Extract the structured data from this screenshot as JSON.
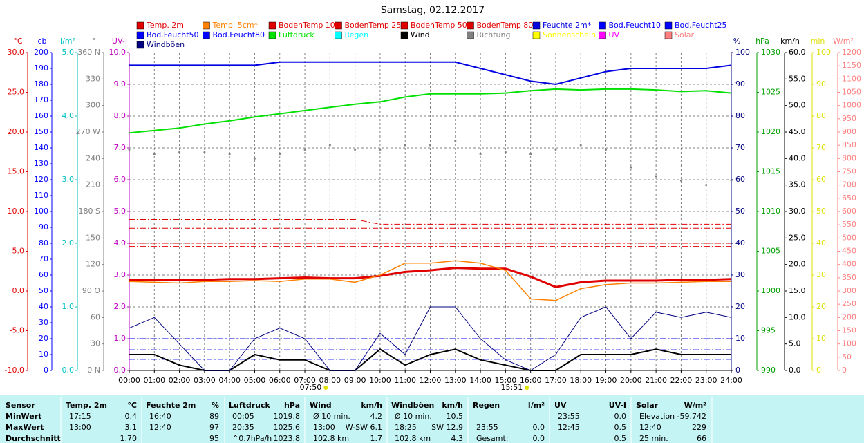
{
  "chart_data": {
    "type": "line",
    "title": "Samstag, 02.12.2017",
    "categories": [
      "00:00",
      "01:00",
      "02:00",
      "03:00",
      "04:00",
      "05:00",
      "06:00",
      "07:00",
      "08:00",
      "09:00",
      "10:00",
      "11:00",
      "12:00",
      "13:00",
      "14:00",
      "15:00",
      "16:00",
      "17:00",
      "18:00",
      "19:00",
      "20:00",
      "21:00",
      "22:00",
      "23:00",
      "24:00"
    ],
    "grid": true,
    "annotations": [
      "07:50",
      "15:51"
    ],
    "axes": [
      {
        "id": "temp",
        "side": "left",
        "label": "°C",
        "color": "#e00000",
        "lim": [
          -10,
          30
        ],
        "ticks": [
          {
            "value": -10,
            "label": "-10.0"
          },
          {
            "value": -5,
            "label": "-5.0"
          },
          {
            "value": 0,
            "label": "0.0"
          },
          {
            "value": 5,
            "label": "5.0"
          },
          {
            "value": 10,
            "label": "10.0"
          },
          {
            "value": 15,
            "label": "15.0"
          },
          {
            "value": 20,
            "label": "20.0"
          },
          {
            "value": 25,
            "label": "25.0"
          },
          {
            "value": 30,
            "label": "30.0"
          }
        ]
      },
      {
        "id": "cb",
        "side": "left",
        "label": "cb",
        "color": "#0000ff",
        "lim": [
          0,
          200
        ],
        "ticks": [
          0,
          10,
          20,
          30,
          40,
          50,
          60,
          70,
          80,
          90,
          100,
          110,
          120,
          130,
          140,
          150,
          160,
          170,
          180,
          190,
          200
        ]
      },
      {
        "id": "rain",
        "side": "left",
        "label": "l/m²",
        "color": "#00c0c0",
        "lim": [
          0,
          5
        ],
        "ticks": [
          {
            "value": 0,
            "label": "0.0"
          },
          {
            "value": 1,
            "label": "1.0"
          },
          {
            "value": 2,
            "label": "2.0"
          },
          {
            "value": 3,
            "label": "3.0"
          },
          {
            "value": 4,
            "label": "4.0"
          },
          {
            "value": 5,
            "label": "5.0"
          }
        ]
      },
      {
        "id": "dir",
        "side": "left",
        "label": "°",
        "color": "#808080",
        "lim": [
          0,
          360
        ],
        "ticks": [
          {
            "value": 0,
            "label": "0 N"
          },
          30,
          60,
          {
            "value": 90,
            "label": "90 O"
          },
          120,
          150,
          {
            "value": 180,
            "label": "180 S"
          },
          210,
          240,
          {
            "value": 270,
            "label": "270 W"
          },
          300,
          330,
          {
            "value": 360,
            "label": "360 N"
          }
        ]
      },
      {
        "id": "uv",
        "side": "left",
        "label": "UV-I",
        "color": "#c000c0",
        "lim": [
          0,
          10
        ],
        "ticks": [
          {
            "value": 0,
            "label": "0.0"
          },
          {
            "value": 1,
            "label": "1.0"
          },
          {
            "value": 2,
            "label": "2.0"
          },
          {
            "value": 3,
            "label": "3.0"
          },
          {
            "value": 4,
            "label": "4.0"
          },
          {
            "value": 5,
            "label": "5.0"
          },
          {
            "value": 6,
            "label": "6.0"
          },
          {
            "value": 7,
            "label": "7.0"
          },
          {
            "value": 8,
            "label": "8.0"
          },
          {
            "value": 9,
            "label": "9.0"
          },
          {
            "value": 10,
            "label": "10.0"
          }
        ]
      },
      {
        "id": "hum",
        "side": "right",
        "label": "%",
        "color": "#000080",
        "lim": [
          0,
          100
        ],
        "ticks": [
          0,
          10,
          20,
          30,
          40,
          50,
          60,
          70,
          80,
          90,
          100
        ]
      },
      {
        "id": "press",
        "side": "right",
        "label": "hPa",
        "color": "#00a000",
        "lim": [
          990,
          1030
        ],
        "ticks": [
          990,
          995,
          1000,
          1005,
          1010,
          1015,
          1020,
          1025,
          1030
        ]
      },
      {
        "id": "wind",
        "side": "right",
        "label": "km/h",
        "color": "#000000",
        "lim": [
          0,
          60
        ],
        "ticks": [
          {
            "value": 0,
            "label": "0.0"
          },
          {
            "value": 5,
            "label": "5.0"
          },
          {
            "value": 10,
            "label": "10.0"
          },
          {
            "value": 15,
            "label": "15.0"
          },
          {
            "value": 20,
            "label": "20.0"
          },
          {
            "value": 25,
            "label": "25.0"
          },
          {
            "value": 30,
            "label": "30.0"
          },
          {
            "value": 35,
            "label": "35.0"
          },
          {
            "value": 40,
            "label": "40.0"
          },
          {
            "value": 45,
            "label": "45.0"
          },
          {
            "value": 50,
            "label": "50.0"
          },
          {
            "value": 55,
            "label": "55.0"
          },
          {
            "value": 60,
            "label": "60.0"
          }
        ]
      },
      {
        "id": "min",
        "side": "right",
        "label": "min",
        "color": "#e0e000",
        "lim": [
          0,
          100
        ],
        "ticks": [
          0,
          10,
          20,
          30,
          40,
          50,
          60,
          70,
          80,
          90,
          100
        ]
      },
      {
        "id": "solar",
        "side": "right",
        "label": "W/m²",
        "color": "#ff8080",
        "lim": [
          0,
          1200
        ],
        "ticks": [
          0,
          50,
          100,
          150,
          200,
          250,
          300,
          350,
          400,
          450,
          500,
          550,
          600,
          650,
          700,
          750,
          800,
          850,
          900,
          950,
          1000,
          1050,
          1100,
          1150,
          1200
        ]
      }
    ],
    "series": [
      {
        "name": "Temp. 2m",
        "color": "#e00000",
        "axis": "temp",
        "width": 3,
        "values": [
          1.4,
          1.4,
          1.4,
          1.4,
          1.5,
          1.5,
          1.6,
          1.7,
          1.6,
          1.6,
          1.9,
          2.4,
          2.6,
          2.9,
          2.8,
          2.8,
          1.8,
          0.5,
          1.1,
          1.3,
          1.3,
          1.3,
          1.4,
          1.4,
          1.5
        ]
      },
      {
        "name": "Temp. 5cm*",
        "color": "#ff8000",
        "axis": "temp",
        "width": 1.5,
        "values": [
          1.2,
          1.1,
          1.0,
          1.2,
          1.2,
          1.3,
          1.2,
          1.5,
          1.5,
          1.1,
          2.0,
          3.5,
          3.5,
          3.8,
          3.5,
          2.6,
          -1.0,
          -1.2,
          0.3,
          0.8,
          1.0,
          1.0,
          1.1,
          1.2,
          1.2
        ]
      },
      {
        "name": "BodenTemp 10",
        "color": "#e00000",
        "axis": "temp",
        "dash": true,
        "values": [
          9.0,
          9.0,
          9.0,
          9.0,
          9.0,
          9.0,
          9.0,
          9.0,
          9.0,
          9.0,
          8.4,
          8.4,
          8.4,
          8.4,
          8.4,
          8.4,
          8.4,
          8.4,
          8.4,
          8.4,
          8.4,
          8.4,
          8.4,
          8.4,
          8.4
        ]
      },
      {
        "name": "BodenTemp 25",
        "color": "#e00000",
        "axis": "temp",
        "dash": true,
        "values": [
          7.9,
          7.9,
          7.9,
          7.9,
          7.9,
          7.9,
          7.9,
          7.9,
          7.9,
          7.9,
          7.9,
          7.9,
          7.9,
          7.9,
          7.9,
          7.9,
          7.9,
          7.9,
          7.9,
          7.9,
          7.9,
          7.9,
          7.9,
          7.9,
          7.9
        ]
      },
      {
        "name": "BodenTemp 50",
        "color": "#e00000",
        "axis": "temp",
        "dash": true,
        "values": [
          6.0,
          6.0,
          6.0,
          6.0,
          6.0,
          6.0,
          6.0,
          6.0,
          6.0,
          6.0,
          6.0,
          6.0,
          6.0,
          6.0,
          6.0,
          6.0,
          6.0,
          6.0,
          6.0,
          6.0,
          6.0,
          6.0,
          6.0,
          6.0,
          6.0
        ]
      },
      {
        "name": "BodenTemp 80",
        "color": "#e00000",
        "axis": "temp",
        "dash": true,
        "values": [
          5.6,
          5.6,
          5.6,
          5.6,
          5.6,
          5.6,
          5.6,
          5.6,
          5.6,
          5.6,
          5.6,
          5.6,
          5.6,
          5.6,
          5.6,
          5.6,
          5.6,
          5.6,
          5.6,
          5.6,
          5.6,
          5.6,
          5.6,
          5.6,
          5.6
        ]
      },
      {
        "name": "Feuchte 2m*",
        "color": "#0000e0",
        "axis": "hum",
        "width": 2,
        "values": [
          96,
          96,
          96,
          96,
          96,
          96,
          97,
          97,
          97,
          97,
          97,
          97,
          97,
          97,
          95,
          93,
          91,
          90,
          92,
          94,
          95,
          95,
          95,
          95,
          96
        ]
      },
      {
        "name": "Bod.Feucht10",
        "color": "#0000ff",
        "axis": "hum",
        "dash": true,
        "values": [
          10,
          10,
          10,
          10,
          10,
          10,
          10,
          10,
          10,
          10,
          10,
          10,
          10,
          10,
          10,
          10,
          10,
          10,
          10,
          10,
          10,
          10,
          10,
          10,
          10
        ]
      },
      {
        "name": "Bod.Feucht25",
        "color": "#0000ff",
        "axis": "hum",
        "dash": true,
        "values": [
          6.5,
          6.5,
          6.5,
          6.5,
          6.5,
          6.5,
          6.5,
          6.5,
          6.5,
          6.5,
          6.5,
          6.5,
          6.5,
          6.5,
          6.5,
          6.5,
          6.5,
          6.5,
          6.5,
          6.5,
          6.5,
          6.5,
          6.5,
          6.5,
          6.5
        ]
      },
      {
        "name": "Bod.Feucht50",
        "color": "#0000ff",
        "axis": "hum",
        "dash": true,
        "values": [
          3.5,
          3.5,
          3.5,
          3.5,
          3.5,
          3.5,
          3.5,
          3.5,
          3.5,
          3.5,
          3.5,
          3.5,
          3.5,
          3.5,
          3.5,
          3.5,
          3.5,
          3.5,
          3.5,
          3.5,
          3.5,
          3.5,
          3.5,
          3.5,
          3.5
        ]
      },
      {
        "name": "Bod.Feucht80",
        "color": "#0000ff"
      },
      {
        "name": "Luftdruck",
        "color": "#00e000",
        "axis": "press",
        "width": 2,
        "values": [
          1019.9,
          1020.2,
          1020.5,
          1021.0,
          1021.4,
          1021.9,
          1022.3,
          1022.7,
          1023.1,
          1023.5,
          1023.8,
          1024.4,
          1024.8,
          1024.8,
          1024.8,
          1024.9,
          1025.2,
          1025.4,
          1025.3,
          1025.4,
          1025.4,
          1025.3,
          1025.1,
          1025.2,
          1024.9
        ]
      },
      {
        "name": "Regen",
        "color": "#00ffff"
      },
      {
        "name": "Wind",
        "color": "#000000",
        "axis": "wind",
        "width": 2,
        "values": [
          3,
          3,
          1,
          0,
          0,
          3,
          2,
          2,
          0,
          0,
          4,
          1,
          3,
          4,
          2,
          1,
          0,
          0,
          3,
          3,
          3,
          4,
          3,
          3,
          3
        ]
      },
      {
        "name": "Richtung",
        "color": "#808080",
        "axis": "dir",
        "marker": "dot",
        "values": [
          250,
          245,
          247,
          247,
          245,
          240,
          245,
          250,
          255,
          250,
          250,
          255,
          255,
          260,
          245,
          247,
          245,
          250,
          255,
          250,
          230,
          220,
          215,
          210,
          215
        ]
      },
      {
        "name": "Sonnenschein",
        "color": "#ffff00"
      },
      {
        "name": "UV",
        "color": "#ff00ff"
      },
      {
        "name": "Solar",
        "color": "#ff8080"
      },
      {
        "name": "Windböen",
        "color": "#000080",
        "axis": "wind",
        "width": 1,
        "values": [
          8,
          10,
          5,
          0,
          0,
          6,
          8,
          6,
          0,
          0,
          7,
          3,
          12,
          12,
          6,
          2,
          0,
          3,
          10,
          12,
          6,
          11,
          10,
          11,
          10
        ]
      }
    ]
  },
  "table": {
    "header": [
      "Sensor",
      "Temp. 2m",
      "°C",
      "Feuchte 2m",
      "%",
      "Luftdruck",
      "hPa",
      "Wind",
      "km/h",
      "Windböen",
      "km/h",
      "Regen",
      "l/m²",
      "UV",
      "UV-I",
      "Solar",
      "W/m²"
    ],
    "rows": [
      {
        "label": "MinWert",
        "cells": [
          "17:15",
          "0.4",
          "16:40",
          "89",
          "00:05",
          "1019.8",
          "Ø 10 min.",
          "4.2",
          "Ø 10 min.",
          "10.5",
          null,
          null,
          "23:55",
          "0.0",
          "Elevation",
          "-59.742"
        ]
      },
      {
        "label": "MaxWert",
        "cells": [
          "13:00",
          "3.1",
          "12:40",
          "97",
          "20:35",
          "1025.6",
          "13:00",
          "W-SW 6.1",
          "18:25",
          "SW 12.9",
          "23:55",
          "0.0",
          "12:45",
          "0.5",
          "12:40",
          "229"
        ]
      },
      {
        "label": "Durchschnitt",
        "cells": [
          null,
          "1.70",
          null,
          "95",
          "^0.7hPa/h",
          "1023.8",
          "102.8 km",
          "1.7",
          "102.8 km",
          "4.3",
          "Gesamt:",
          "0.0",
          null,
          "0.5",
          "25 min.",
          "66"
        ]
      }
    ]
  }
}
